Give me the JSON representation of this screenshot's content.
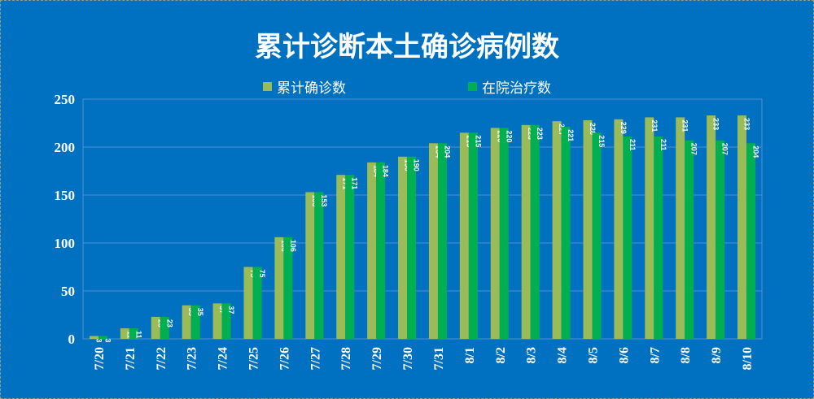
{
  "chart_data": {
    "type": "bar",
    "title": "累计诊断本土确诊病例数",
    "xlabel": "",
    "ylabel": "",
    "ylim": [
      0,
      250
    ],
    "yticks": [
      0,
      50,
      100,
      150,
      200,
      250
    ],
    "grid": true,
    "legend_position": "top",
    "categories": [
      "7/20",
      "7/21",
      "7/22",
      "7/23",
      "7/24",
      "7/25",
      "7/26",
      "7/27",
      "7/28",
      "7/29",
      "7/30",
      "7/31",
      "8/1",
      "8/2",
      "8/3",
      "8/4",
      "8/5",
      "8/6",
      "8/7",
      "8/8",
      "8/9",
      "8/10"
    ],
    "series": [
      {
        "name": "累计确诊数",
        "color": "#9BBB59",
        "values": [
          3,
          11,
          23,
          35,
          37,
          75,
          106,
          153,
          171,
          184,
          190,
          204,
          215,
          220,
          223,
          227,
          228,
          229,
          231,
          231,
          233,
          233
        ]
      },
      {
        "name": "在院治疗数",
        "color": "#00B050",
        "values": [
          3,
          11,
          23,
          35,
          37,
          75,
          106,
          153,
          171,
          184,
          190,
          204,
          215,
          220,
          223,
          221,
          215,
          211,
          211,
          207,
          207,
          204
        ]
      }
    ]
  }
}
